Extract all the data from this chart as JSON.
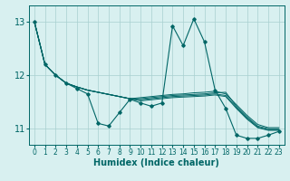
{
  "xlabel": "Humidex (Indice chaleur)",
  "bg_color": "#d8f0f0",
  "grid_color": "#a8d0d0",
  "line_color": "#006666",
  "xlim": [
    -0.5,
    23.5
  ],
  "ylim": [
    10.7,
    13.3
  ],
  "yticks": [
    11,
    12,
    13
  ],
  "xticks": [
    0,
    1,
    2,
    3,
    4,
    5,
    6,
    7,
    8,
    9,
    10,
    11,
    12,
    13,
    14,
    15,
    16,
    17,
    18,
    19,
    20,
    21,
    22,
    23
  ],
  "smooth_series": [
    [
      13.0,
      12.2,
      12.0,
      11.85,
      11.78,
      11.72,
      11.68,
      11.64,
      11.6,
      11.56,
      11.58,
      11.6,
      11.62,
      11.64,
      11.65,
      11.67,
      11.68,
      11.7,
      11.65,
      11.45,
      11.25,
      11.08,
      11.02,
      11.02
    ],
    [
      13.0,
      12.2,
      12.0,
      11.85,
      11.78,
      11.72,
      11.68,
      11.64,
      11.6,
      11.56,
      11.56,
      11.58,
      11.6,
      11.62,
      11.63,
      11.64,
      11.65,
      11.67,
      11.68,
      11.42,
      11.22,
      11.05,
      11.0,
      11.0
    ],
    [
      13.0,
      12.2,
      12.0,
      11.85,
      11.78,
      11.72,
      11.68,
      11.64,
      11.6,
      11.56,
      11.54,
      11.56,
      11.58,
      11.6,
      11.61,
      11.62,
      11.63,
      11.65,
      11.62,
      11.4,
      11.2,
      11.03,
      10.98,
      10.98
    ],
    [
      13.0,
      12.2,
      12.0,
      11.85,
      11.78,
      11.72,
      11.68,
      11.64,
      11.6,
      11.56,
      11.52,
      11.54,
      11.56,
      11.58,
      11.59,
      11.6,
      11.61,
      11.63,
      11.6,
      11.38,
      11.18,
      11.02,
      10.97,
      10.97
    ]
  ],
  "main_series": [
    13.0,
    12.2,
    12.0,
    11.85,
    11.75,
    11.65,
    11.1,
    11.05,
    11.3,
    11.55,
    11.48,
    11.42,
    11.48,
    12.92,
    12.55,
    13.05,
    12.62,
    11.72,
    11.38,
    10.88,
    10.82,
    10.82,
    10.88,
    10.95
  ]
}
